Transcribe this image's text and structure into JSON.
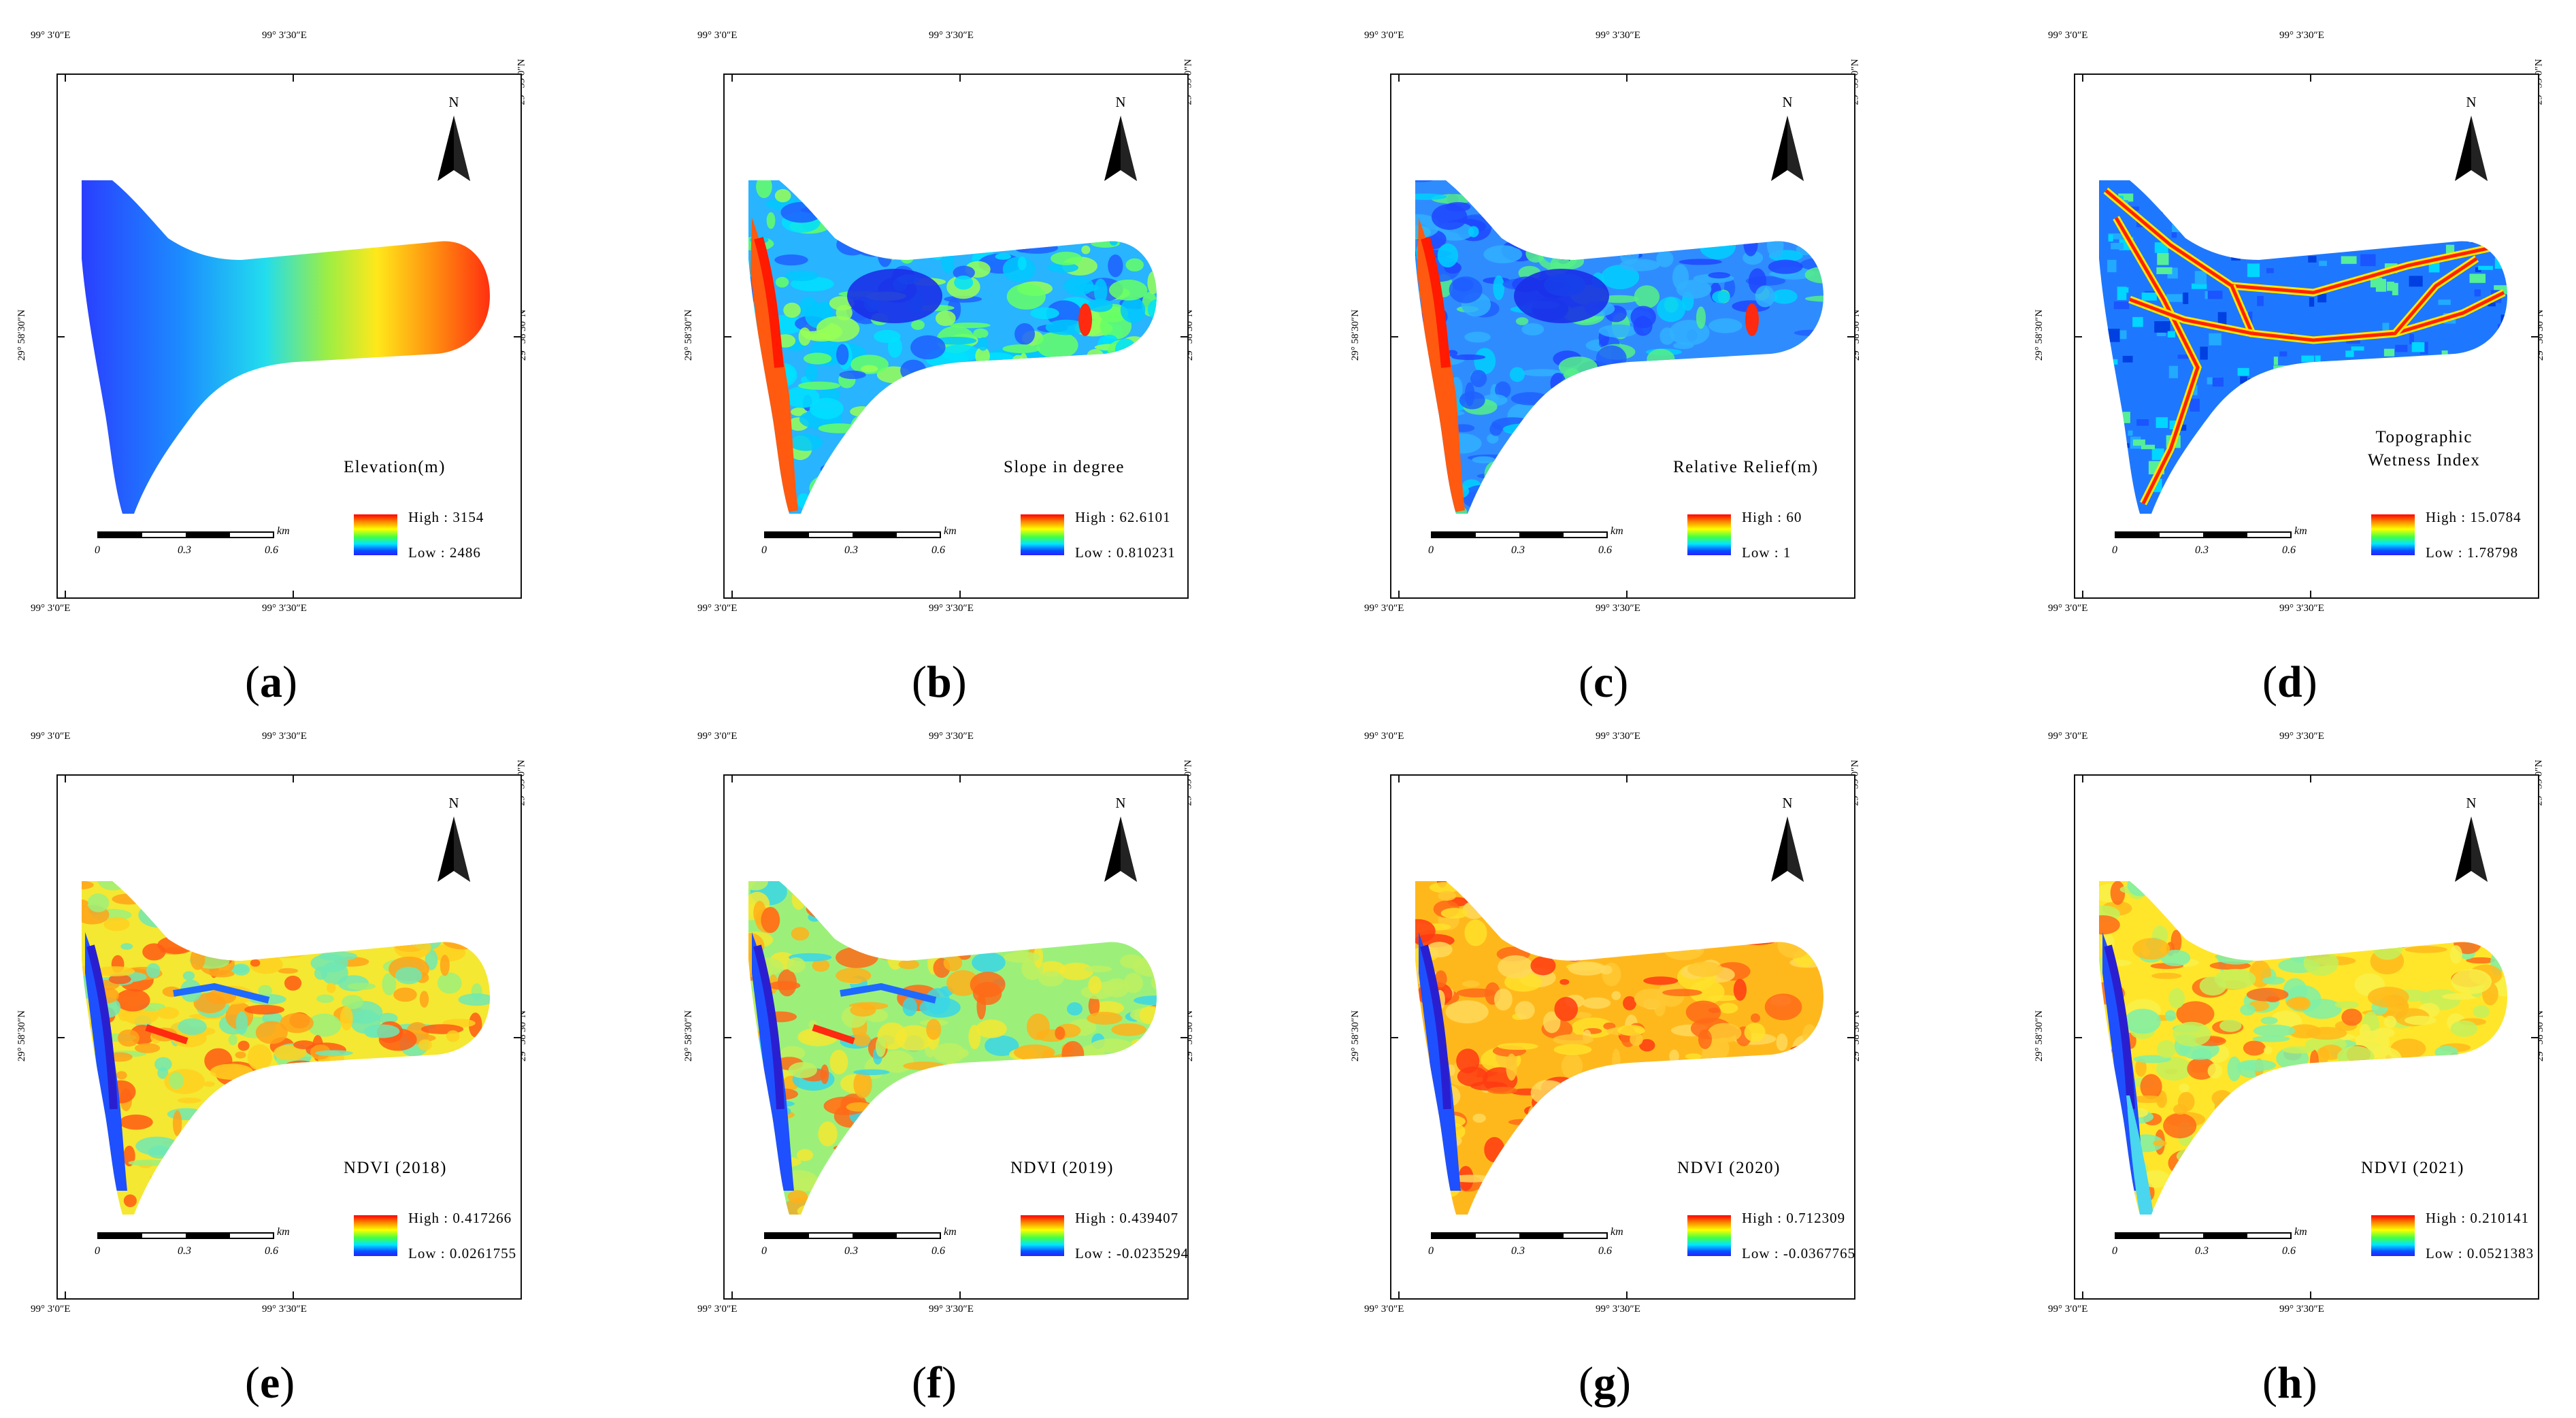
{
  "coordinates": {
    "lon_left": "99° 3′0″E",
    "lon_right": "99° 3′30″E",
    "lat_top": "29° 59′0″N",
    "lat_mid": "29° 58′30″N"
  },
  "north_label": "N",
  "scale": {
    "ticks": [
      "0",
      "0.3",
      "0.6"
    ],
    "unit": "km"
  },
  "panels": [
    {
      "id": "a",
      "caption": "a",
      "title": "Elevation(m)",
      "high": "High : 3154",
      "low": "Low : 2486",
      "pattern": "gradient"
    },
    {
      "id": "b",
      "caption": "b",
      "title": "Slope in degree",
      "high": "High : 62.6101",
      "low": "Low : 0.810231",
      "pattern": "slope"
    },
    {
      "id": "c",
      "caption": "c",
      "title": "Relative Relief(m)",
      "high": "High : 60",
      "low": "Low : 1",
      "pattern": "relief"
    },
    {
      "id": "d",
      "caption": "d",
      "title": "Topographic\nWetness Index",
      "high": "High : 15.0784",
      "low": "Low : 1.78798",
      "pattern": "twi"
    },
    {
      "id": "e",
      "caption": "e",
      "title": "NDVI (2018)",
      "high": "High : 0.417266",
      "low": "Low : 0.0261755",
      "pattern": "ndvi1"
    },
    {
      "id": "f",
      "caption": "f",
      "title": "NDVI (2019)",
      "high": "High : 0.439407",
      "low": "Low : -0.0235294",
      "pattern": "ndvi2"
    },
    {
      "id": "g",
      "caption": "g",
      "title": "NDVI (2020)",
      "high": "High : 0.712309",
      "low": "Low : -0.0367765",
      "pattern": "ndvi3"
    },
    {
      "id": "h",
      "caption": "h",
      "title": "NDVI (2021)",
      "high": "High : 0.210141",
      "low": "Low : 0.0521383",
      "pattern": "ndvi4"
    }
  ]
}
